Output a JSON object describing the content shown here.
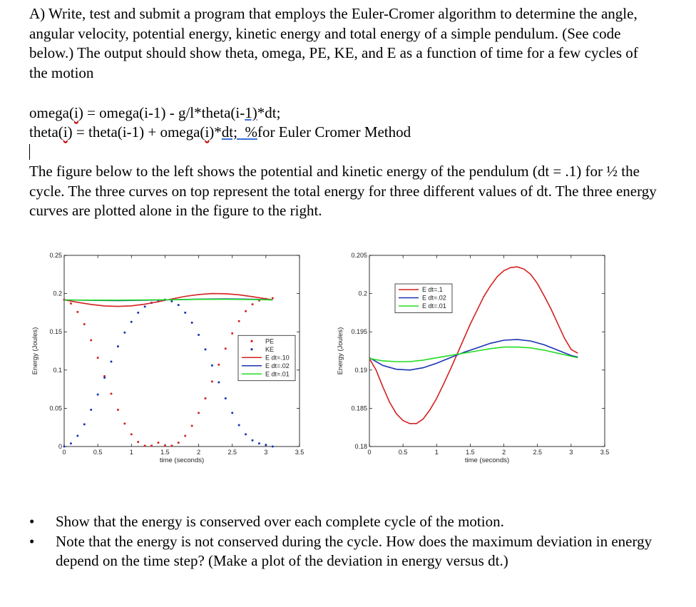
{
  "intro_paragraph": "A) Write, test and submit a program that employs the Euler-Cromer algorithm to determine the angle, angular velocity, potential energy, kinetic energy and total energy of a simple pendulum. (See code below.) The output should show theta, omega, PE, KE, and E as a function of time for a few cycles of the motion",
  "code": {
    "line1_a": "omega(",
    "line1_b": "i",
    "line1_c": ") = omega(i-1) - g/l*theta(i-",
    "line1_d": "1)",
    "line1_e": "*dt;",
    "line2_a": "theta(",
    "line2_b": "i",
    "line2_c": ") = theta(i-1) + omega(",
    "line2_d": "i",
    "line2_e": ")*",
    "line2_f": "dt;  %",
    "line2_g": "for Euler Cromer Method"
  },
  "figure_paragraph": "The figure below to the left shows the potential and kinetic energy of the pendulum (dt = .1) for ½ the cycle. The three curves on top represent the total energy for three different values of dt. The three energy curves are plotted alone in the figure to the right.",
  "bullets": [
    "Show that the energy is conserved over each complete cycle of the motion.",
    "Note that the energy is not conserved during the cycle. How does the maximum deviation in energy depend on the time step? (Make a plot of the deviation in energy versus dt.)"
  ],
  "bullet_symbol": "•",
  "chart_data": [
    {
      "type": "line",
      "xlabel": "time (seconds)",
      "ylabel": "Energy (Joules)",
      "xlim": [
        0,
        3.5
      ],
      "ylim": [
        0,
        0.25
      ],
      "xticks": [
        "0",
        "0.5",
        "1",
        "1.5",
        "2",
        "2.5",
        "3",
        "3.5"
      ],
      "yticks": [
        "0",
        "0.05",
        "0.1",
        "0.15",
        "0.2",
        "0.25"
      ],
      "legend_position": "right-middle",
      "markers": [
        {
          "name": "PE",
          "color": "#d42020",
          "style": "dots",
          "x": [
            0,
            0.1,
            0.2,
            0.3,
            0.4,
            0.5,
            0.6,
            0.7,
            0.8,
            0.9,
            1.0,
            1.1,
            1.2,
            1.3,
            1.4,
            1.5,
            1.6,
            1.7,
            1.8,
            1.9,
            2.0,
            2.1,
            2.2,
            2.3,
            2.4,
            2.5,
            2.6,
            2.7,
            2.8,
            2.9,
            3.0,
            3.1
          ],
          "values": [
            0.192,
            0.187,
            0.176,
            0.16,
            0.139,
            0.116,
            0.092,
            0.069,
            0.048,
            0.03,
            0.016,
            0.006,
            0.001,
            0.001,
            0.005,
            0.001,
            0.001,
            0.005,
            0.014,
            0.027,
            0.044,
            0.063,
            0.085,
            0.107,
            0.128,
            0.148,
            0.164,
            0.177,
            0.186,
            0.191,
            0.193,
            0.194
          ]
        },
        {
          "name": "KE",
          "color": "#1a32b4",
          "style": "dots",
          "x": [
            0,
            0.1,
            0.2,
            0.3,
            0.4,
            0.5,
            0.6,
            0.7,
            0.8,
            0.9,
            1.0,
            1.1,
            1.2,
            1.3,
            1.4,
            1.5,
            1.6,
            1.7,
            1.8,
            1.9,
            2.0,
            2.1,
            2.2,
            2.3,
            2.4,
            2.5,
            2.6,
            2.7,
            2.8,
            2.9,
            3.0,
            3.1
          ],
          "values": [
            0.0,
            0.004,
            0.014,
            0.029,
            0.048,
            0.068,
            0.09,
            0.111,
            0.131,
            0.149,
            0.163,
            0.175,
            0.183,
            0.188,
            0.19,
            0.192,
            0.19,
            0.185,
            0.175,
            0.162,
            0.146,
            0.127,
            0.106,
            0.084,
            0.063,
            0.044,
            0.028,
            0.016,
            0.008,
            0.004,
            0.002,
            0.0
          ]
        }
      ],
      "series": [
        {
          "name": "E dt=.10",
          "color": "#d42020",
          "x": [
            0,
            0.2,
            0.4,
            0.6,
            0.8,
            1.0,
            1.2,
            1.4,
            1.6,
            1.8,
            2.0,
            2.2,
            2.4,
            2.6,
            2.8,
            3.0,
            3.1
          ],
          "values": [
            0.1917,
            0.1886,
            0.1858,
            0.1839,
            0.1832,
            0.184,
            0.1862,
            0.1894,
            0.193,
            0.1964,
            0.1988,
            0.2,
            0.1998,
            0.1984,
            0.196,
            0.1932,
            0.192
          ]
        },
        {
          "name": "E dt=.02",
          "color": "#1a32b4",
          "x": [
            0,
            0.4,
            0.8,
            1.2,
            1.6,
            2.0,
            2.4,
            2.8,
            3.1
          ],
          "values": [
            0.1917,
            0.1911,
            0.1909,
            0.1913,
            0.192,
            0.1927,
            0.193,
            0.1925,
            0.1918
          ]
        },
        {
          "name": "E dt=.01",
          "color": "#22dd22",
          "x": [
            0,
            0.4,
            0.8,
            1.2,
            1.6,
            2.0,
            2.4,
            2.8,
            3.1
          ],
          "values": [
            0.1917,
            0.1914,
            0.1914,
            0.1916,
            0.192,
            0.1924,
            0.1925,
            0.1922,
            0.1918
          ]
        }
      ],
      "legend": [
        "PE",
        "KE",
        "E dt=.10",
        "E dt=.02",
        "E dt=.01"
      ]
    },
    {
      "type": "line",
      "xlabel": "time (seconds)",
      "ylabel": "Energy (Joules)",
      "xlim": [
        0,
        3.5
      ],
      "ylim": [
        0.18,
        0.205
      ],
      "xticks": [
        "0",
        "0.5",
        "1",
        "1.5",
        "2",
        "2.5",
        "3",
        "3.5"
      ],
      "yticks": [
        "0.18",
        "0.185",
        "0.19",
        "0.195",
        "0.2",
        "0.205"
      ],
      "legend_position": "top-left",
      "series": [
        {
          "name": "E dt=.1",
          "color": "#d42020",
          "x": [
            0,
            0.1,
            0.2,
            0.3,
            0.4,
            0.5,
            0.6,
            0.7,
            0.8,
            0.9,
            1.0,
            1.1,
            1.2,
            1.3,
            1.4,
            1.5,
            1.6,
            1.7,
            1.8,
            1.9,
            2.0,
            2.1,
            2.2,
            2.3,
            2.4,
            2.5,
            2.6,
            2.7,
            2.8,
            2.9,
            3.0,
            3.1
          ],
          "values": [
            0.1915,
            0.19,
            0.1878,
            0.1858,
            0.1843,
            0.1834,
            0.183,
            0.183,
            0.1836,
            0.1848,
            0.1863,
            0.1881,
            0.19,
            0.192,
            0.194,
            0.196,
            0.1978,
            0.1996,
            0.201,
            0.2022,
            0.203,
            0.2034,
            0.2035,
            0.2032,
            0.2025,
            0.2013,
            0.1997,
            0.198,
            0.1961,
            0.1942,
            0.1927,
            0.1922
          ]
        },
        {
          "name": "E dt=.02",
          "color": "#1a32b4",
          "x": [
            0,
            0.2,
            0.4,
            0.6,
            0.8,
            1.0,
            1.2,
            1.4,
            1.6,
            1.8,
            2.0,
            2.2,
            2.4,
            2.6,
            2.8,
            3.0,
            3.1
          ],
          "values": [
            0.1916,
            0.1906,
            0.1901,
            0.19,
            0.1903,
            0.1909,
            0.1916,
            0.1923,
            0.1929,
            0.1935,
            0.1939,
            0.194,
            0.1938,
            0.1933,
            0.1926,
            0.1919,
            0.1917
          ]
        },
        {
          "name": "E dt=.01",
          "color": "#22dd22",
          "x": [
            0,
            0.2,
            0.4,
            0.6,
            0.8,
            1.0,
            1.2,
            1.4,
            1.6,
            1.8,
            2.0,
            2.2,
            2.4,
            2.6,
            2.8,
            3.0,
            3.1
          ],
          "values": [
            0.1915,
            0.1912,
            0.1911,
            0.1911,
            0.1913,
            0.1916,
            0.1919,
            0.1922,
            0.1925,
            0.1928,
            0.193,
            0.193,
            0.1929,
            0.1926,
            0.1922,
            0.1918,
            0.1916
          ]
        }
      ],
      "legend": [
        "E dt=.1",
        "E dt=.02",
        "E dt=.01"
      ]
    }
  ]
}
